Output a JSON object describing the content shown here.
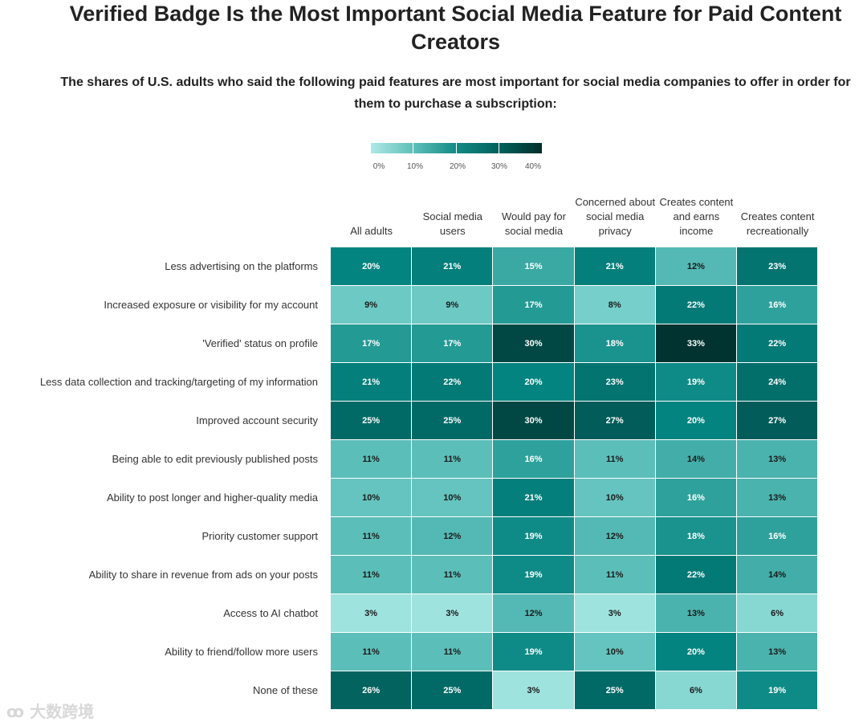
{
  "header": {
    "title": "Verified Badge Is the Most Important Social Media Feature for Paid Content Creators",
    "subtitle": "The shares of U.S. adults who said the following paid features are most important for social media companies to offer in order for them to purchase a subscription:"
  },
  "legend": {
    "ticks": [
      "0%",
      "10%",
      "20%",
      "30%",
      "40%"
    ],
    "colors": [
      "#aee9e6",
      "#5fbfba",
      "#128a85",
      "#02615c",
      "#022e2b"
    ]
  },
  "watermark": {
    "text": "大数跨境"
  },
  "chart_data": {
    "type": "heatmap",
    "title": "Verified Badge Is the Most Important Social Media Feature for Paid Content Creators",
    "subtitle": "The shares of U.S. adults who said the following paid features are most important for social media companies to offer in order for them to purchase a subscription:",
    "columns": [
      "All adults",
      "Social media users",
      "Would pay for social media",
      "Concerned about social media privacy",
      "Creates content and earns income",
      "Creates content recreationally"
    ],
    "rows": [
      "Less advertising on the platforms",
      "Increased exposure or visibility for my account",
      "'Verified' status on profile",
      "Less data collection and tracking/targeting of my information",
      "Improved account security",
      "Being able to edit previously published posts",
      "Ability to post longer and higher-quality media",
      "Priority customer support",
      "Ability to share in revenue from ads on your posts",
      "Access to AI chatbot",
      "Ability to friend/follow more users",
      "None of these"
    ],
    "values": [
      [
        20,
        21,
        15,
        21,
        12,
        23
      ],
      [
        9,
        9,
        17,
        8,
        22,
        16
      ],
      [
        17,
        17,
        30,
        18,
        33,
        22
      ],
      [
        21,
        22,
        20,
        23,
        19,
        24
      ],
      [
        25,
        25,
        30,
        27,
        20,
        27
      ],
      [
        11,
        11,
        16,
        11,
        14,
        13
      ],
      [
        10,
        10,
        21,
        10,
        16,
        13
      ],
      [
        11,
        12,
        19,
        12,
        18,
        16
      ],
      [
        11,
        11,
        19,
        11,
        22,
        14
      ],
      [
        3,
        3,
        12,
        3,
        13,
        6
      ],
      [
        11,
        11,
        19,
        10,
        20,
        13
      ],
      [
        26,
        25,
        3,
        25,
        6,
        19
      ]
    ],
    "value_suffix": "%",
    "color_scale": {
      "min": 0,
      "max": 40
    }
  }
}
